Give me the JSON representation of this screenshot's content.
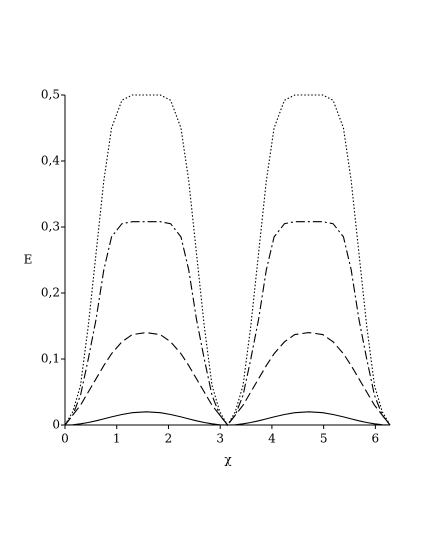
{
  "chart_data": {
    "type": "line",
    "x_label": "χ",
    "y_label": "E",
    "x": [
      0,
      0.15,
      0.3,
      0.45,
      0.6,
      0.75,
      0.9,
      1.1,
      1.3,
      1.571,
      1.842,
      2.042,
      2.242,
      2.392,
      2.542,
      2.692,
      2.842,
      2.992,
      3.142,
      3.292,
      3.442,
      3.592,
      3.742,
      3.892,
      4.042,
      4.242,
      4.442,
      4.712,
      4.983,
      5.183,
      5.383,
      5.533,
      5.683,
      5.833,
      5.983,
      6.133,
      6.283
    ],
    "series": [
      {
        "color": "#000000",
        "dash": "solid",
        "values": [
          0,
          0.0004,
          0.0018,
          0.0038,
          0.0064,
          0.0093,
          0.0123,
          0.0159,
          0.0186,
          0.02,
          0.0186,
          0.0159,
          0.0123,
          0.0093,
          0.0064,
          0.0038,
          0.0018,
          0.0004,
          0,
          0.0004,
          0.0018,
          0.0038,
          0.0064,
          0.0093,
          0.0123,
          0.0159,
          0.0186,
          0.02,
          0.0186,
          0.0159,
          0.0123,
          0.0093,
          0.0064,
          0.0038,
          0.0018,
          0.0004,
          0
        ]
      },
      {
        "color": "#000000",
        "dash": "dashed",
        "values": [
          0,
          0.015,
          0.03,
          0.05,
          0.07,
          0.09,
          0.108,
          0.126,
          0.137,
          0.14,
          0.137,
          0.126,
          0.108,
          0.09,
          0.07,
          0.05,
          0.03,
          0.015,
          0,
          0.015,
          0.03,
          0.05,
          0.07,
          0.09,
          0.108,
          0.126,
          0.137,
          0.14,
          0.137,
          0.126,
          0.108,
          0.09,
          0.07,
          0.05,
          0.03,
          0.015,
          0
        ]
      },
      {
        "color": "#000000",
        "dash": "dashdot",
        "values": [
          0,
          0.015,
          0.045,
          0.1,
          0.16,
          0.235,
          0.285,
          0.305,
          0.308,
          0.308,
          0.308,
          0.305,
          0.285,
          0.235,
          0.16,
          0.1,
          0.045,
          0.015,
          0,
          0.015,
          0.045,
          0.1,
          0.16,
          0.235,
          0.285,
          0.305,
          0.308,
          0.308,
          0.308,
          0.305,
          0.285,
          0.235,
          0.16,
          0.1,
          0.045,
          0.015,
          0
        ]
      },
      {
        "color": "#000000",
        "dash": "dotted",
        "values": [
          0,
          0.02,
          0.06,
          0.15,
          0.26,
          0.37,
          0.45,
          0.492,
          0.5,
          0.5,
          0.5,
          0.492,
          0.45,
          0.37,
          0.26,
          0.15,
          0.06,
          0.02,
          0,
          0.02,
          0.06,
          0.15,
          0.26,
          0.37,
          0.45,
          0.492,
          0.5,
          0.5,
          0.5,
          0.492,
          0.45,
          0.37,
          0.26,
          0.15,
          0.06,
          0.02,
          0
        ]
      }
    ],
    "xlim": [
      0,
      6.283
    ],
    "xticks": [
      0,
      1,
      2,
      3,
      4,
      5,
      6
    ],
    "ylim": [
      0,
      0.5
    ],
    "yticks": [
      0,
      {
        "value": 0.1,
        "label": "0,1"
      },
      {
        "value": 0.2,
        "label": "0,2"
      },
      {
        "value": 0.3,
        "label": "0,3"
      },
      {
        "value": 0.4,
        "label": "0,4"
      },
      {
        "value": 0.5,
        "label": "0,5"
      }
    ],
    "grid": false
  }
}
